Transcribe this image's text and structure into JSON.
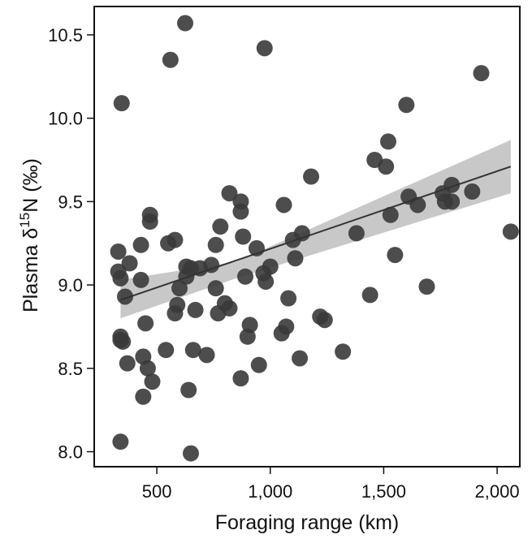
{
  "chart_data": {
    "type": "scatter",
    "xlabel": "Foraging range (km)",
    "ylabel": [
      "Plasma  δ",
      "15",
      "N (‰)"
    ],
    "color": "#3a3a3a",
    "x": [
      625,
      560,
      975,
      345,
      1930,
      1600,
      1520,
      1460,
      1510,
      1180,
      1890,
      1800,
      1760,
      1770,
      1800,
      1610,
      1650,
      1530,
      1550,
      1380,
      2060,
      1690,
      1440,
      1320,
      1240,
      1220,
      1130,
      1140,
      1100,
      1110,
      1060,
      1080,
      1070,
      1050,
      1000,
      980,
      970,
      940,
      950,
      900,
      910,
      870,
      880,
      890,
      870,
      870,
      820,
      780,
      820,
      800,
      770,
      760,
      760,
      740,
      720,
      690,
      660,
      670,
      650,
      630,
      630,
      640,
      650,
      580,
      590,
      580,
      600,
      550,
      540,
      480,
      470,
      470,
      430,
      430,
      440,
      450,
      460,
      440,
      380,
      360,
      370,
      330,
      330,
      340,
      340,
      340,
      350,
      340
    ],
    "y": [
      10.57,
      10.35,
      10.42,
      10.09,
      10.27,
      10.08,
      9.86,
      9.75,
      9.71,
      9.65,
      9.56,
      9.6,
      9.55,
      9.5,
      9.5,
      9.53,
      9.48,
      9.42,
      9.18,
      9.31,
      9.32,
      8.99,
      8.94,
      8.6,
      8.79,
      8.81,
      8.56,
      9.31,
      9.27,
      9.16,
      9.48,
      8.92,
      8.75,
      8.71,
      9.11,
      9.02,
      9.07,
      9.22,
      8.52,
      8.69,
      8.76,
      8.44,
      9.29,
      9.05,
      9.5,
      9.44,
      9.55,
      9.35,
      8.86,
      8.89,
      8.83,
      8.98,
      9.24,
      9.12,
      8.58,
      9.1,
      8.61,
      8.85,
      9.1,
      9.11,
      9.05,
      8.37,
      7.99,
      8.83,
      8.88,
      9.27,
      8.98,
      9.25,
      8.61,
      8.42,
      9.42,
      9.38,
      9.24,
      9.03,
      8.57,
      8.77,
      8.5,
      8.33,
      9.13,
      8.93,
      8.53,
      9.2,
      9.08,
      9.04,
      8.69,
      8.67,
      8.66,
      8.06
    ],
    "fit": {
      "x": [
        340,
        2060
      ],
      "y": [
        8.91,
        9.71
      ],
      "color": "#333333"
    },
    "band": {
      "x": [
        340,
        850,
        2060
      ],
      "lower": [
        8.8,
        9.04,
        9.55
      ],
      "upper": [
        9.03,
        9.14,
        9.87
      ],
      "color": "#c8c8c8"
    },
    "xlim": [
      224,
      2100
    ],
    "ylim": [
      7.91,
      10.67
    ],
    "xticks": [
      500,
      {
        "value": 1000,
        "label": "1,000"
      },
      {
        "value": 1500,
        "label": "1,500"
      },
      {
        "value": 2000,
        "label": "2,000"
      }
    ],
    "yticks": [
      {
        "value": 8,
        "label": "8.0"
      },
      8.5,
      {
        "value": 9,
        "label": "9.0"
      },
      9.5,
      {
        "value": 10,
        "label": "10.0"
      },
      10.5
    ]
  }
}
